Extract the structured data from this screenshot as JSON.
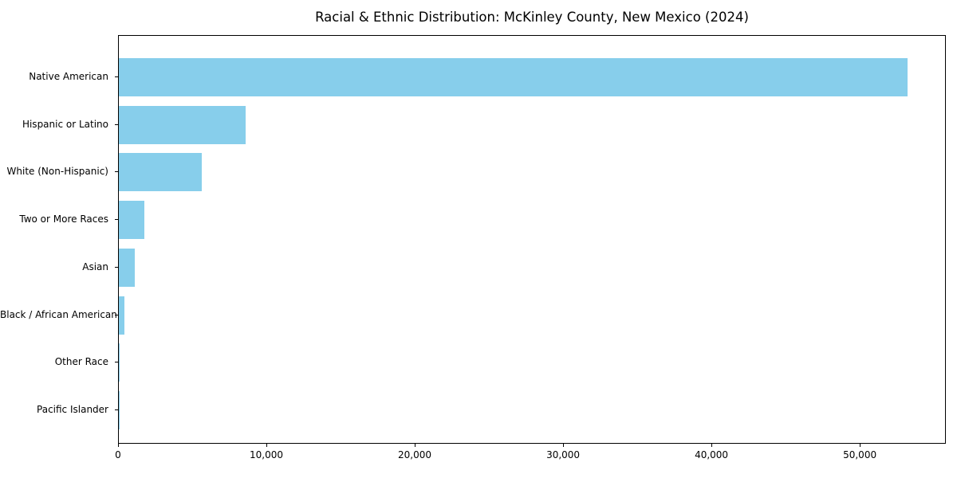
{
  "chart_data": {
    "type": "bar",
    "orientation": "horizontal",
    "title": "Racial & Ethnic Distribution: McKinley County, New Mexico (2024)",
    "categories": [
      "Native American",
      "Hispanic or Latino",
      "White (Non-Hispanic)",
      "Two or More Races",
      "Asian",
      "Black / African American",
      "Other Race",
      "Pacific Islander"
    ],
    "values": [
      53150,
      8550,
      5600,
      1700,
      1050,
      350,
      60,
      40
    ],
    "xlabel": "",
    "ylabel": "",
    "xlim": [
      0,
      55800
    ],
    "xticks": [
      0,
      10000,
      20000,
      30000,
      40000,
      50000
    ],
    "xtick_labels": [
      "0",
      "10,000",
      "20,000",
      "30,000",
      "40,000",
      "50,000"
    ],
    "bar_color": "#87CEEB",
    "axis_color": "#000000",
    "grid": false,
    "legend": null
  }
}
